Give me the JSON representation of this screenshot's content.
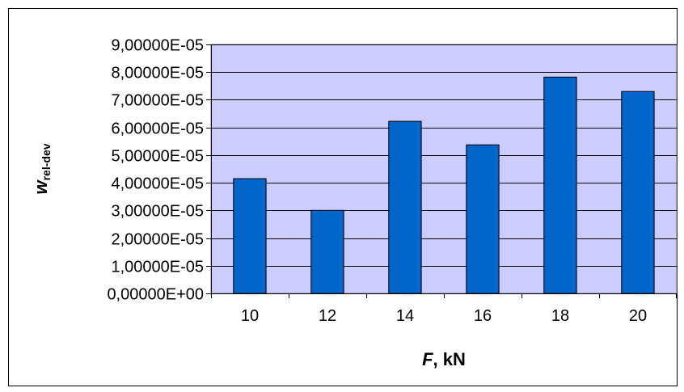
{
  "chart_data": {
    "type": "bar",
    "title": "",
    "xlabel_main": "F",
    "xlabel_rest": ", kN",
    "ylabel_main": "w",
    "ylabel_sub": "rel-dev",
    "categories": [
      "10",
      "12",
      "14",
      "16",
      "18",
      "20"
    ],
    "values": [
      4.15e-05,
      3e-05,
      6.22e-05,
      5.37e-05,
      7.82e-05,
      7.3e-05
    ],
    "ylim": [
      0,
      9e-05
    ],
    "yticks": [
      0,
      1e-05,
      2e-05,
      3e-05,
      4e-05,
      5e-05,
      6e-05,
      7e-05,
      8e-05,
      9e-05
    ],
    "ytick_labels": [
      "0,00000E+00",
      "1,00000E-05",
      "2,00000E-05",
      "3,00000E-05",
      "4,00000E-05",
      "5,00000E-05",
      "6,00000E-05",
      "7,00000E-05",
      "8,00000E-05",
      "9,00000E-05"
    ],
    "grid": true,
    "legend": "none",
    "colors": {
      "bar_fill": "#0066cc",
      "plot_background": "#ccccff",
      "gridline": "#000000",
      "bar_outline": "#000000"
    }
  }
}
